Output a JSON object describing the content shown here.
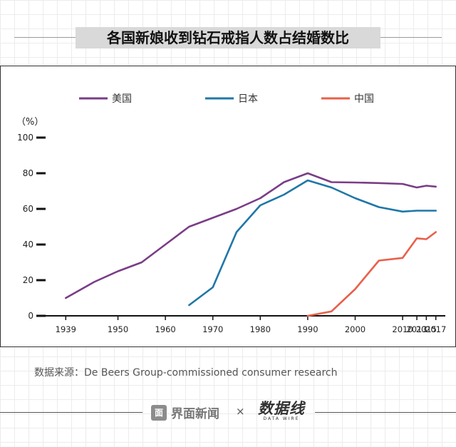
{
  "title": "各国新娘收到钻石戒指人数占结婚数比",
  "chart_data": {
    "type": "line",
    "ylabel": "（%）",
    "ylim": [
      0,
      100
    ],
    "yticks": [
      0,
      20,
      40,
      60,
      80,
      100
    ],
    "xlim": [
      1934,
      2019
    ],
    "xticks": [
      1939,
      1950,
      1960,
      1970,
      1980,
      1990,
      2000,
      2010,
      2013,
      2015,
      2017
    ],
    "legend_position": "top",
    "series": [
      {
        "name": "美国",
        "color": "#7a3d87",
        "x": [
          1939,
          1945,
          1950,
          1955,
          1960,
          1965,
          1970,
          1975,
          1980,
          1985,
          1990,
          1995,
          2000,
          2005,
          2010,
          2013,
          2015,
          2017
        ],
        "y": [
          10,
          19,
          25,
          30,
          40,
          50,
          55,
          60,
          66,
          75,
          80,
          75,
          74.8,
          74.5,
          74,
          72,
          73,
          72.5
        ]
      },
      {
        "name": "日本",
        "color": "#1f77a8",
        "x": [
          1965,
          1970,
          1975,
          1980,
          1985,
          1990,
          1995,
          2000,
          2005,
          2010,
          2013,
          2015,
          2017
        ],
        "y": [
          6,
          16,
          47,
          62,
          68,
          76,
          72,
          66,
          61,
          58.5,
          59,
          59,
          59
        ]
      },
      {
        "name": "中国",
        "color": "#e8604a",
        "x": [
          1990,
          1995,
          2000,
          2005,
          2010,
          2013,
          2015,
          2017
        ],
        "y": [
          0,
          2.5,
          15,
          31,
          32.5,
          43.5,
          43,
          47
        ]
      }
    ]
  },
  "source": "数据来源：De Beers Group-commissioned consumer research",
  "footer": {
    "brand_logo": "面",
    "brand": "界面新闻",
    "times": "×",
    "wire": "数据线",
    "wire_en": "DATA WIRE"
  }
}
